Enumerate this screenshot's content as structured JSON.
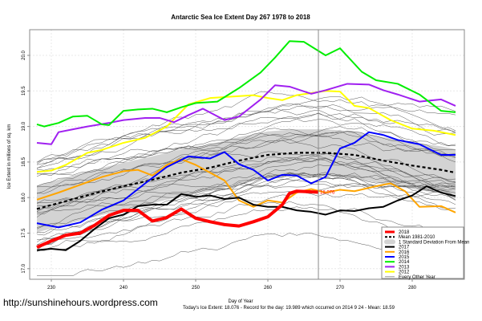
{
  "chart_data": {
    "type": "line",
    "title": "Antarctic Sea Ice Extent Day 267 1978 to 2018",
    "xlabel": "Day of Year",
    "ylabel": "Ice Extent in millions of sq. km",
    "xlim": [
      227.5,
      287.5
    ],
    "ylim": [
      16.85,
      20.45
    ],
    "x_ticks": [
      230,
      240,
      250,
      260,
      270,
      280
    ],
    "y_ticks": [
      "17.0",
      "17.5",
      "18.0",
      "18.5",
      "19.0",
      "19.5",
      "20.0"
    ],
    "grid": true,
    "current_day_marker": 267,
    "legend_position": "bottom-right",
    "end_label": "18.076",
    "series": [
      {
        "name": "2018",
        "color": "#ff0000",
        "width": "thick",
        "x": [
          228,
          230,
          232,
          234,
          236,
          238,
          240,
          242,
          244,
          246,
          248,
          250,
          252,
          254,
          256,
          258,
          260,
          262,
          263,
          264,
          267
        ],
        "values": [
          17.3,
          17.39,
          17.47,
          17.5,
          17.61,
          17.75,
          17.82,
          17.82,
          17.67,
          17.72,
          17.84,
          17.71,
          17.66,
          17.62,
          17.6,
          17.66,
          17.73,
          17.9,
          18.06,
          18.09,
          18.076
        ]
      },
      {
        "name": "Mean 1981-2010",
        "color": "#000000",
        "style": "dashed",
        "x": [
          228,
          232,
          236,
          240,
          244,
          248,
          252,
          256,
          260,
          264,
          268,
          272,
          276,
          280,
          284,
          286
        ],
        "values": [
          17.84,
          17.95,
          18.06,
          18.16,
          18.25,
          18.35,
          18.42,
          18.52,
          18.6,
          18.63,
          18.63,
          18.6,
          18.52,
          18.45,
          18.39,
          18.35
        ]
      },
      {
        "name": "1 Standard Deviation From Mean",
        "color": "#d3d3d3",
        "type": "band",
        "half_width": 0.33
      },
      {
        "name": "2017",
        "color": "#000000",
        "x": [
          228,
          230,
          232,
          234,
          236,
          238,
          240,
          242,
          244,
          246,
          248,
          250,
          252,
          254,
          256,
          258,
          260,
          262,
          264,
          266,
          268,
          270,
          272,
          274,
          276,
          278,
          280,
          282,
          284,
          286
        ],
        "values": [
          17.26,
          17.28,
          17.26,
          17.39,
          17.56,
          17.71,
          17.76,
          17.88,
          17.9,
          17.9,
          18.05,
          18.01,
          18.03,
          17.98,
          18.0,
          17.9,
          17.87,
          17.87,
          17.82,
          17.8,
          17.76,
          17.82,
          17.81,
          17.85,
          17.87,
          17.96,
          18.03,
          18.16,
          18.07,
          18.02
        ]
      },
      {
        "name": "2016",
        "color": "#ffa500",
        "x": [
          228,
          231,
          234,
          237,
          240,
          242,
          244,
          246,
          248,
          250,
          252,
          254,
          256,
          258,
          260,
          262,
          264,
          266,
          268,
          270,
          272,
          275,
          277,
          279,
          281,
          284,
          286
        ],
        "values": [
          17.97,
          18.07,
          18.18,
          18.29,
          18.37,
          18.39,
          18.31,
          18.46,
          18.54,
          18.46,
          18.35,
          18.24,
          17.96,
          17.87,
          17.96,
          17.93,
          18.07,
          18.12,
          18.07,
          18.11,
          18.09,
          18.16,
          18.2,
          18.09,
          17.87,
          17.88,
          17.79
        ]
      },
      {
        "name": "2015",
        "color": "#0000ff",
        "x": [
          228,
          231,
          234,
          237,
          240,
          243,
          246,
          249,
          252,
          254,
          256,
          258,
          260,
          262,
          264,
          266,
          268,
          270,
          272,
          274,
          276,
          278,
          281,
          284,
          286
        ],
        "values": [
          17.64,
          17.58,
          17.65,
          17.83,
          17.96,
          18.2,
          18.43,
          18.58,
          18.55,
          18.64,
          18.47,
          18.39,
          18.24,
          18.32,
          18.31,
          18.2,
          18.29,
          18.69,
          18.77,
          18.92,
          18.88,
          18.81,
          18.75,
          18.6,
          18.6
        ]
      },
      {
        "name": "2014",
        "color": "#00ee00",
        "x": [
          228,
          229,
          231,
          233,
          235,
          237,
          238,
          240,
          242,
          244,
          246,
          248,
          250,
          253,
          256,
          259,
          261,
          263,
          265,
          268,
          270,
          273,
          275,
          278,
          281,
          284,
          286
        ],
        "values": [
          19.03,
          19.0,
          19.05,
          19.14,
          19.15,
          19.03,
          19.02,
          19.22,
          19.24,
          19.25,
          19.2,
          19.27,
          19.33,
          19.35,
          19.54,
          19.76,
          19.97,
          20.2,
          20.19,
          20.0,
          20.1,
          19.77,
          19.65,
          19.6,
          19.45,
          19.22,
          19.2
        ]
      },
      {
        "name": "2013",
        "color": "#a020f0",
        "x": [
          228,
          230,
          231,
          233,
          235,
          238,
          240,
          243,
          245,
          247,
          249,
          251,
          254,
          256,
          259,
          261,
          263,
          266,
          268,
          271,
          274,
          276,
          278,
          281,
          284,
          286
        ],
        "values": [
          18.77,
          18.75,
          18.92,
          18.96,
          19.0,
          19.05,
          19.09,
          19.12,
          19.12,
          19.06,
          19.16,
          19.25,
          19.09,
          19.14,
          19.38,
          19.58,
          19.56,
          19.46,
          19.51,
          19.6,
          19.59,
          19.51,
          19.45,
          19.35,
          19.38,
          19.29
        ]
      },
      {
        "name": "2012",
        "color": "#ffff00",
        "x": [
          228,
          230,
          232,
          235,
          237,
          240,
          243,
          246,
          249,
          252,
          255,
          258,
          260,
          262,
          264,
          266,
          268,
          270,
          272,
          274,
          277,
          280,
          283,
          286
        ],
        "values": [
          18.36,
          18.38,
          18.46,
          18.63,
          18.67,
          18.77,
          18.84,
          19.0,
          19.31,
          19.4,
          19.42,
          19.44,
          19.4,
          19.37,
          19.44,
          19.47,
          19.5,
          19.49,
          19.29,
          19.26,
          19.09,
          18.97,
          18.94,
          18.88
        ]
      },
      {
        "name": "Every Other Year",
        "color": "#808080",
        "type": "thin-lines"
      }
    ]
  },
  "footer": {
    "url": "http://sunshinehours.wordpress.com",
    "summary": "Today's Ice Extent: 18.076  - Record for the day: 19.989 which occurred on 2014 9 24  - Mean: 18.59"
  }
}
